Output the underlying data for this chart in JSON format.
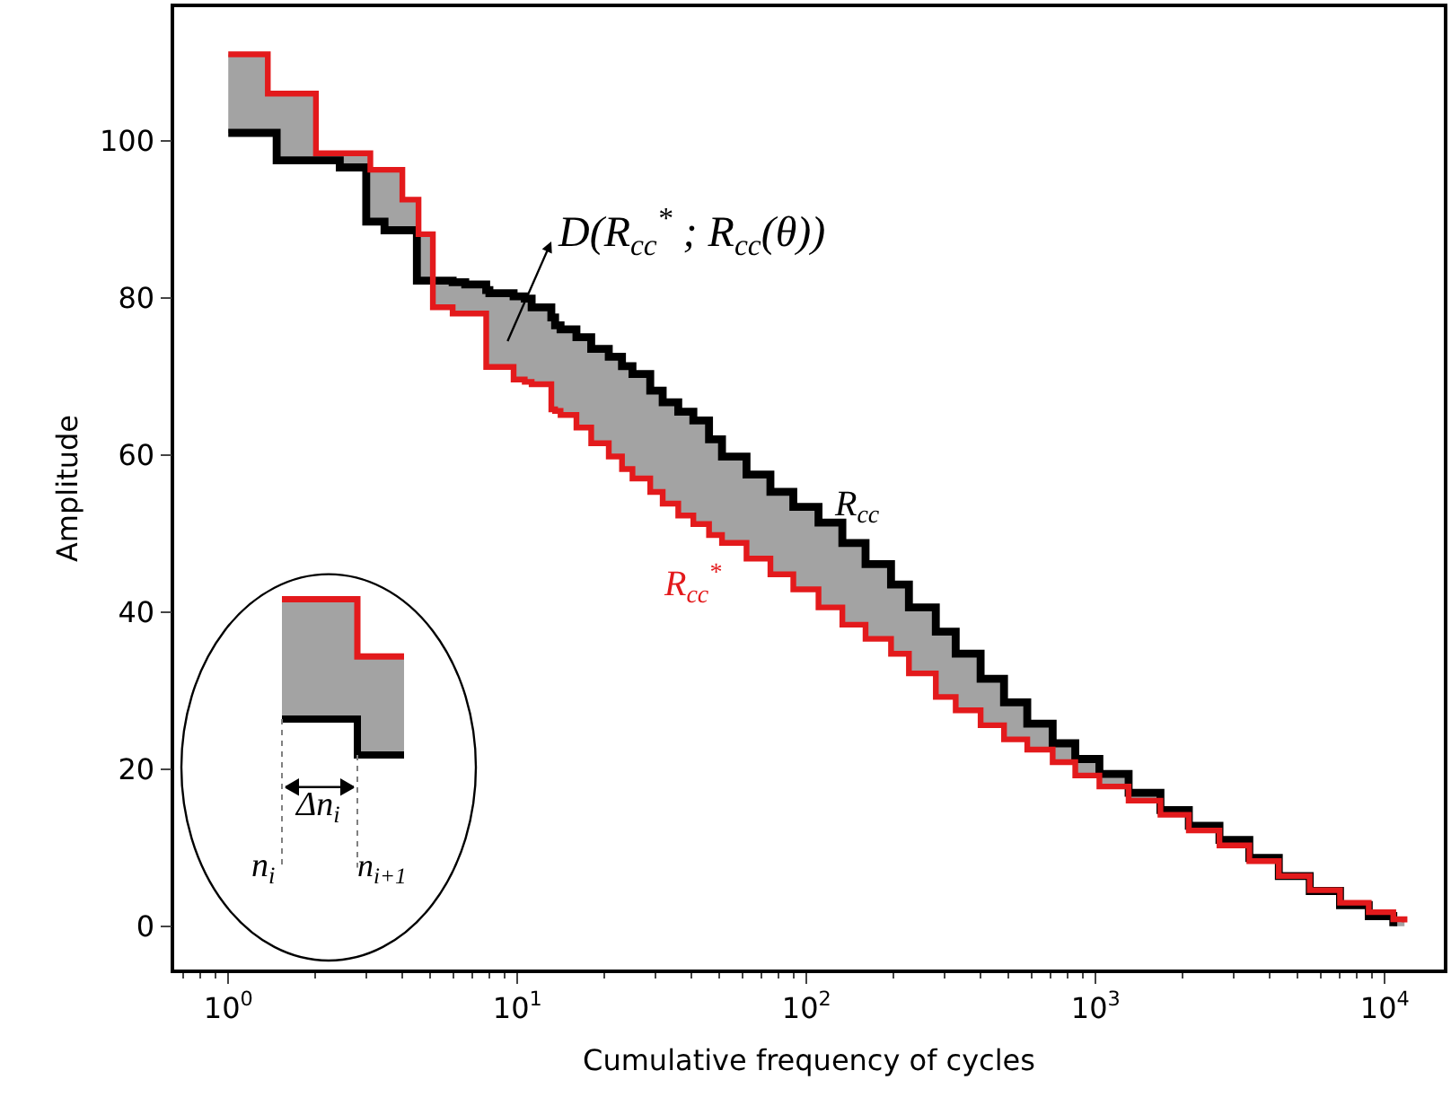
{
  "chart_data": {
    "type": "step",
    "xlabel": "Cumulative frequency of cycles",
    "ylabel": "Amplitude",
    "log": "x",
    "xlim": [
      0.65,
      16000
    ],
    "xticks": [
      {
        "value": 1,
        "label": "10$^{0}$"
      },
      {
        "value": 10,
        "label": "10$^{1}$"
      },
      {
        "value": 100,
        "label": "10$^{2}$"
      },
      {
        "value": 1000,
        "label": "10$^{3}$"
      },
      {
        "value": 10000,
        "label": "10$^{4}$"
      }
    ],
    "ylim": [
      -5.5,
      117
    ],
    "yticks": [
      0,
      20,
      40,
      60,
      80,
      100
    ],
    "legend": false,
    "marker": "none",
    "line_style": "solid",
    "x": [
      1,
      1.37,
      1.47,
      2.01,
      2.43,
      3.0,
      3.1,
      3.47,
      4.0,
      4.49,
      4.55,
      5.1,
      5.97,
      6.6,
      7.8,
      8.0,
      9.7,
      10.6,
      11.2,
      13.1,
      13.5,
      14.1,
      16,
      18,
      20.7,
      23,
      25,
      28.8,
      31.8,
      36,
      40.6,
      46,
      51,
      62,
      75,
      90,
      110,
      133,
      160,
      196,
      226,
      280,
      328,
      400,
      482,
      580,
      710,
      850,
      1030,
      1300,
      1675,
      2100,
      2680,
      3400,
      4300,
      5500,
      7000,
      8800,
      10700,
      11700
    ],
    "series": [
      {
        "name": "R$_{cc}$",
        "color": "#000000",
        "values": [
          101,
          101,
          97.5,
          97.5,
          96.6,
          89.7,
          89.7,
          88.6,
          88.6,
          82.2,
          82.2,
          82.2,
          82.0,
          81.7,
          81.0,
          80.6,
          80.2,
          79.9,
          78.8,
          77.5,
          76.5,
          76.0,
          75.0,
          73.5,
          72.5,
          71.3,
          70.3,
          68.2,
          66.7,
          65.5,
          64.4,
          62.0,
          59.8,
          57.5,
          55.3,
          53.4,
          51.4,
          48.8,
          46.1,
          43.5,
          40.6,
          37.5,
          34.7,
          31.5,
          28.5,
          25.8,
          23.3,
          21.3,
          19.4,
          17.0,
          14.8,
          12.8,
          11.0,
          8.7,
          6.4,
          4.5,
          2.7,
          1.3,
          0,
          null
        ]
      },
      {
        "name": "R$_{cc}$$^{*}$",
        "color": "#e31a1c",
        "values": [
          111,
          106,
          106,
          98.4,
          98.4,
          98.4,
          96.3,
          96.3,
          92.5,
          92.5,
          88.1,
          78.8,
          78.0,
          78.0,
          71.2,
          71.2,
          69.6,
          69.3,
          69.0,
          65.8,
          65.6,
          65.1,
          63.5,
          61.5,
          59.8,
          58.2,
          57.0,
          55.3,
          53.8,
          52.3,
          51.2,
          49.8,
          48.8,
          46.8,
          44.8,
          42.9,
          40.6,
          38.4,
          36.6,
          34.7,
          32.2,
          29.2,
          27.5,
          25.6,
          23.8,
          22.5,
          20.9,
          19.2,
          17.8,
          16.0,
          14.2,
          12.2,
          10.3,
          8.3,
          6.4,
          4.6,
          3.0,
          1.8,
          0.9,
          0.5
        ],
        "lower": [
          111,
          106,
          106,
          98.4,
          98.4,
          98.4,
          96.3,
          96.3,
          92.5,
          92.5,
          88.1,
          78.8,
          78.0,
          78.0,
          71.2,
          71.2,
          69.6,
          69.3,
          69.0,
          65.8,
          65.6,
          65.1,
          63.5,
          61.5,
          59.8,
          58.2,
          57.0,
          55.3,
          53.8,
          52.3,
          51.2,
          49.8,
          48.8,
          46.8,
          44.8,
          42.9,
          40.6,
          38.4,
          36.6,
          34.7,
          32.2,
          29.2,
          27.5,
          25.6,
          23.8,
          22.5,
          20.9,
          19.2,
          17.8,
          16.0,
          14.2,
          12.2,
          10.3,
          8.3,
          6.4,
          4.6,
          3.0,
          1.8,
          0.9,
          0.5
        ],
        "upper": [
          101,
          101,
          97.5,
          97.5,
          96.6,
          89.7,
          89.7,
          88.6,
          88.6,
          82.2,
          82.2,
          82.2,
          82.0,
          81.7,
          81.0,
          80.6,
          80.2,
          79.9,
          78.8,
          77.5,
          76.5,
          76.0,
          75.0,
          73.5,
          72.5,
          71.3,
          70.3,
          68.2,
          66.7,
          65.5,
          64.4,
          62.0,
          59.8,
          57.5,
          55.3,
          53.4,
          51.4,
          48.8,
          46.1,
          43.5,
          40.6,
          37.5,
          34.7,
          31.5,
          28.5,
          25.8,
          23.3,
          21.3,
          19.4,
          17.0,
          14.8,
          12.8,
          11.0,
          8.7,
          6.4,
          4.5,
          2.7,
          1.3,
          0,
          0.5
        ]
      }
    ],
    "annotations": [
      "D(R$_{cc}$$^{*}$ ; R$_{cc}$(θ))",
      "Δn$_{i}$",
      "n$_{i}$",
      "n$_{i+1}$"
    ]
  }
}
